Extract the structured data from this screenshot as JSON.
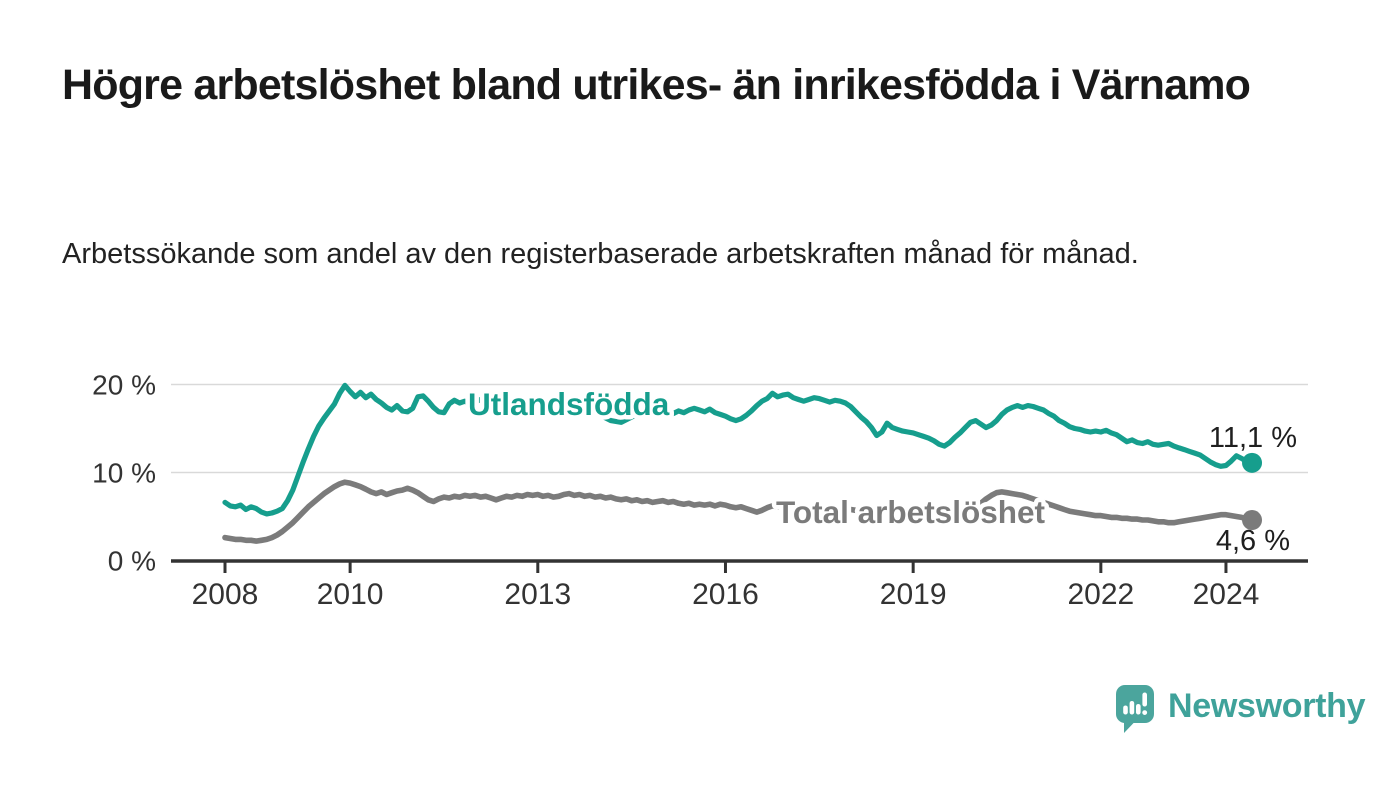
{
  "title": "Högre arbetslöshet bland utrikes- än inrikesfödda i Värnamo",
  "subtitle": "Arbetssökande som andel av den registerbaserade arbetskraften månad för månad.",
  "footer": {
    "brand": "Newsworthy",
    "logo_icon": "bar-chart-speech-bubble-icon"
  },
  "colors": {
    "series_foreign_born": "#169e8d",
    "series_total": "#7b7b7b",
    "axis_text": "#333333",
    "gridline": "#d9d9d9",
    "axis_line": "#333333",
    "end_label_text": "#1f1f1f",
    "brand_teal": "#4ba59d"
  },
  "chart_data": {
    "type": "line",
    "unit": "%",
    "frequency": "monthly",
    "x_start": "2008-01",
    "x_end": "2024-06",
    "ylim": [
      0,
      20
    ],
    "grid": "horizontal",
    "legend_position": "inline-labels",
    "yticks": [
      {
        "label": "20 %",
        "value": 20
      },
      {
        "label": "10 %",
        "value": 10
      },
      {
        "label": "0 %",
        "value": 0
      }
    ],
    "xticks": [
      {
        "label": "2008",
        "year": 2008
      },
      {
        "label": "2010",
        "year": 2010
      },
      {
        "label": "2013",
        "year": 2013
      },
      {
        "label": "2016",
        "year": 2016
      },
      {
        "label": "2019",
        "year": 2019
      },
      {
        "label": "2022",
        "year": 2022
      },
      {
        "label": "2024",
        "year": 2024
      }
    ],
    "series": [
      {
        "name": "Utlandsfödda",
        "color": "#169e8d",
        "end_label": "11,1 %",
        "end_value": 11.1,
        "values": [
          6.6,
          6.2,
          6.1,
          6.3,
          5.8,
          6.1,
          5.9,
          5.5,
          5.3,
          5.4,
          5.6,
          5.9,
          6.8,
          8.0,
          9.6,
          11.2,
          12.7,
          14.1,
          15.3,
          16.2,
          17.0,
          17.8,
          19.0,
          19.9,
          19.2,
          18.6,
          19.1,
          18.5,
          18.9,
          18.3,
          17.9,
          17.4,
          17.1,
          17.6,
          17.0,
          16.9,
          17.3,
          18.6,
          18.7,
          18.1,
          17.4,
          16.9,
          16.8,
          17.8,
          18.2,
          17.9,
          18.1,
          17.8,
          18.0,
          18.3,
          17.9,
          18.1,
          17.8,
          17.6,
          17.9,
          17.7,
          17.4,
          17.6,
          17.3,
          17.5,
          17.4,
          17.6,
          17.3,
          17.5,
          17.2,
          17.4,
          17.1,
          17.3,
          17.0,
          17.2,
          16.9,
          16.7,
          16.5,
          16.2,
          15.9,
          15.8,
          15.7,
          16.0,
          16.3,
          16.6,
          16.4,
          16.7,
          16.5,
          16.8,
          16.6,
          16.9,
          16.7,
          17.0,
          16.8,
          17.1,
          17.3,
          17.1,
          16.9,
          17.2,
          16.8,
          16.6,
          16.4,
          16.1,
          15.9,
          16.1,
          16.5,
          17.0,
          17.6,
          18.1,
          18.4,
          19.0,
          18.6,
          18.8,
          18.9,
          18.5,
          18.3,
          18.1,
          18.3,
          18.5,
          18.4,
          18.2,
          18.0,
          18.2,
          18.1,
          17.9,
          17.5,
          16.9,
          16.3,
          15.8,
          15.1,
          14.2,
          14.6,
          15.6,
          15.1,
          14.9,
          14.7,
          14.6,
          14.5,
          14.3,
          14.1,
          13.9,
          13.6,
          13.2,
          13.0,
          13.4,
          14.0,
          14.5,
          15.1,
          15.7,
          15.9,
          15.5,
          15.1,
          15.4,
          15.9,
          16.6,
          17.1,
          17.4,
          17.6,
          17.4,
          17.6,
          17.5,
          17.3,
          17.1,
          16.7,
          16.4,
          15.9,
          15.6,
          15.2,
          15.0,
          14.9,
          14.7,
          14.6,
          14.7,
          14.6,
          14.8,
          14.5,
          14.3,
          13.9,
          13.5,
          13.7,
          13.4,
          13.3,
          13.5,
          13.2,
          13.1,
          13.2,
          13.3,
          13.0,
          12.8,
          12.6,
          12.4,
          12.2,
          12.0,
          11.6,
          11.2,
          10.9,
          10.7,
          10.8,
          11.3,
          11.9,
          11.6,
          11.2,
          11.1
        ]
      },
      {
        "name": "Total arbetslöshet",
        "color": "#7b7b7b",
        "end_label": "4,6 %",
        "end_value": 4.6,
        "values": [
          2.6,
          2.5,
          2.4,
          2.4,
          2.3,
          2.3,
          2.2,
          2.3,
          2.4,
          2.6,
          2.9,
          3.3,
          3.8,
          4.3,
          4.9,
          5.5,
          6.1,
          6.6,
          7.1,
          7.6,
          8.0,
          8.4,
          8.7,
          8.9,
          8.8,
          8.6,
          8.4,
          8.1,
          7.8,
          7.6,
          7.8,
          7.5,
          7.7,
          7.9,
          8.0,
          8.2,
          8.0,
          7.7,
          7.3,
          6.9,
          6.7,
          7.0,
          7.2,
          7.1,
          7.3,
          7.2,
          7.4,
          7.3,
          7.4,
          7.2,
          7.3,
          7.1,
          6.9,
          7.1,
          7.3,
          7.2,
          7.4,
          7.3,
          7.5,
          7.4,
          7.5,
          7.3,
          7.4,
          7.2,
          7.3,
          7.5,
          7.6,
          7.4,
          7.5,
          7.3,
          7.4,
          7.2,
          7.3,
          7.1,
          7.2,
          7.0,
          6.9,
          7.0,
          6.8,
          6.9,
          6.7,
          6.8,
          6.6,
          6.7,
          6.8,
          6.6,
          6.7,
          6.5,
          6.4,
          6.5,
          6.3,
          6.4,
          6.3,
          6.4,
          6.2,
          6.4,
          6.3,
          6.1,
          6.0,
          6.1,
          5.9,
          5.7,
          5.5,
          5.7,
          6.0,
          6.2,
          6.1,
          6.0,
          6.1,
          6.0,
          5.9,
          6.0,
          5.8,
          5.9,
          6.0,
          5.9,
          5.8,
          5.9,
          5.8,
          5.7,
          5.8,
          5.7,
          5.6,
          5.5,
          5.4,
          5.3,
          5.4,
          5.5,
          5.4,
          5.3,
          5.2,
          5.3,
          5.2,
          5.1,
          5.0,
          5.1,
          5.0,
          4.9,
          5.0,
          5.1,
          5.2,
          5.4,
          5.6,
          5.9,
          6.2,
          6.5,
          7.0,
          7.4,
          7.7,
          7.8,
          7.7,
          7.6,
          7.5,
          7.4,
          7.2,
          7.0,
          6.8,
          6.6,
          6.4,
          6.2,
          6.0,
          5.8,
          5.6,
          5.5,
          5.4,
          5.3,
          5.2,
          5.1,
          5.1,
          5.0,
          4.9,
          4.9,
          4.8,
          4.8,
          4.7,
          4.7,
          4.6,
          4.6,
          4.5,
          4.4,
          4.4,
          4.3,
          4.3,
          4.4,
          4.5,
          4.6,
          4.7,
          4.8,
          4.9,
          5.0,
          5.1,
          5.2,
          5.2,
          5.1,
          5.0,
          4.9,
          4.7,
          4.6
        ]
      }
    ]
  }
}
